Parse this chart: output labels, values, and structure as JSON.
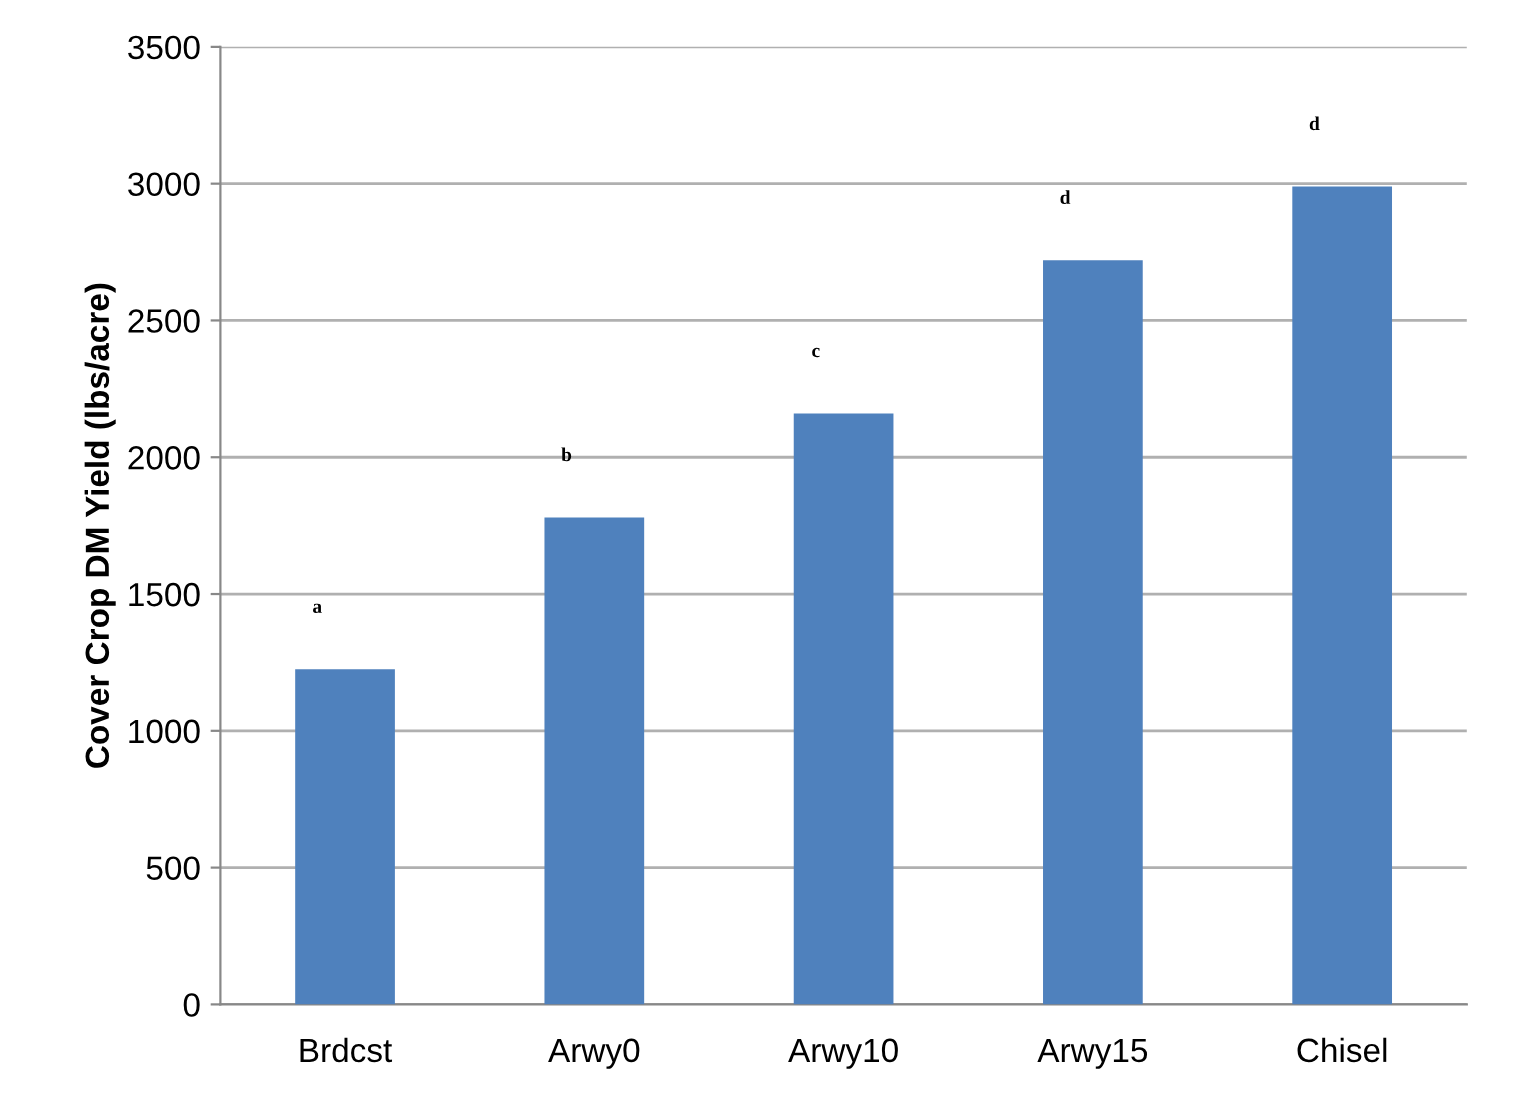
{
  "chart_data": {
    "type": "bar",
    "ylabel": "Cover Crop DM Yield (lbs/acre)",
    "categories": [
      "Brdcst",
      "Arwy0",
      "Arwy10",
      "Arwy15",
      "Chisel"
    ],
    "values": [
      1225,
      1780,
      2160,
      2720,
      2990
    ],
    "color": "#4f81bd",
    "ylim": [
      0,
      3500
    ],
    "yticks": [
      0,
      500,
      1000,
      1500,
      2000,
      2500,
      3000,
      3500
    ],
    "grid": "y",
    "value_labels": [
      "a",
      "b",
      "c",
      "d",
      "d"
    ]
  }
}
